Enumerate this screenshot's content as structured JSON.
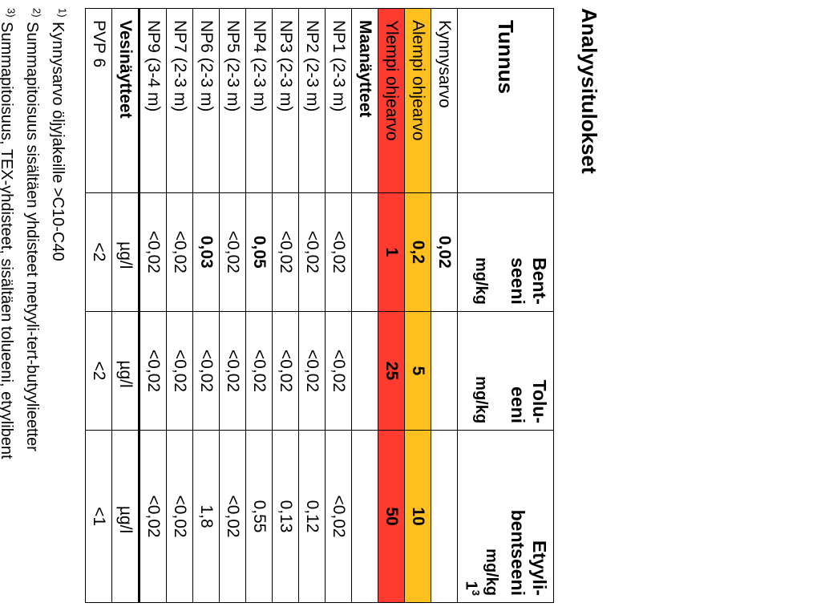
{
  "title": "Analyysitulokset",
  "columns": {
    "tunnus": "Tunnus",
    "bent": "Bent-\nseeni",
    "tolu": "Tolu-\neeni",
    "etyyli": "Etyyli-\nbentseeni"
  },
  "unit_soil": "mg/kg",
  "etyyli_sup": "3",
  "etyyli_one": "1",
  "thresholds": {
    "kynnys": {
      "label": "Kynnysarvo",
      "bent": "0,02",
      "tolu": "",
      "etyyli": ""
    },
    "alempi": {
      "label": "Alempi ohjearvo",
      "bent": "0,2",
      "tolu": "5",
      "etyyli": "10",
      "bg": "#ffbf1f"
    },
    "ylempi": {
      "label": "Ylempi ohjearvo",
      "bent": "1",
      "tolu": "25",
      "etyyli": "50",
      "bg": "#ff3a2f"
    }
  },
  "section_soil": "Maanäytteet",
  "soil_rows": [
    {
      "id": "NP1 (2-3 m)",
      "bent": "<0,02",
      "tolu": "<0,02",
      "etyyli": "<0,02"
    },
    {
      "id": "NP2 (2-3 m)",
      "bent": "<0,02",
      "tolu": "<0,02",
      "etyyli": "0,12"
    },
    {
      "id": "NP3 (2-3 m)",
      "bent": "<0,02",
      "tolu": "<0,02",
      "etyyli": "0,13"
    },
    {
      "id": "NP4 (2-3 m)",
      "bent": "0,05",
      "bent_bold": true,
      "tolu": "<0,02",
      "etyyli": "0,55"
    },
    {
      "id": "NP5 (2-3 m)",
      "bent": "<0,02",
      "tolu": "<0,02",
      "etyyli": "<0,02"
    },
    {
      "id": "NP6 (2-3 m)",
      "bent": "0,03",
      "bent_bold": true,
      "tolu": "<0,02",
      "etyyli": "1,8"
    },
    {
      "id": "NP7 (2-3 m)",
      "bent": "<0,02",
      "tolu": "<0,02",
      "etyyli": "<0,02"
    },
    {
      "id": "NP9 (3-4 m)",
      "bent": "<0,02",
      "tolu": "<0,02",
      "etyyli": "<0,02"
    }
  ],
  "section_water": "Vesinäytteet",
  "unit_water": "µg/l",
  "water_rows": [
    {
      "id": "PVP 6",
      "bent": "<2",
      "tolu": "<2",
      "etyyli": "<1"
    }
  ],
  "footnotes": [
    {
      "n": "1)",
      "t": "Kynnysarvo öljyjakeille >C10-C40"
    },
    {
      "n": "2)",
      "t": "Summapitoisuus sisältäen yhdisteet metyyli-tert-butyylieetter"
    },
    {
      "n": "3)",
      "t": "Summapitoisuus, TEX-yhdisteet, sisältäen tolueeni, etyylibent"
    }
  ]
}
